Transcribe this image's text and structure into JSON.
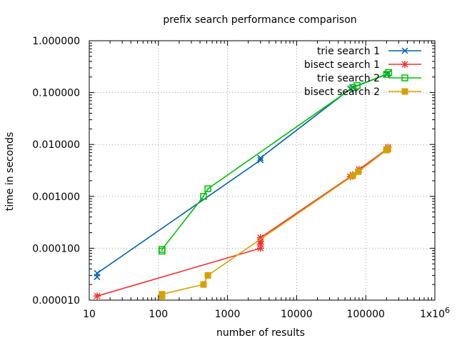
{
  "chart_data": {
    "type": "line",
    "title": "prefix search performance comparison",
    "xlabel": "number of results",
    "ylabel": "time in seconds",
    "x_scale": "log",
    "y_scale": "log",
    "xlim": [
      10,
      1000000
    ],
    "ylim": [
      1e-05,
      1
    ],
    "grid": true,
    "legend_position": "top-right",
    "x_ticks": [
      {
        "value": 10,
        "label": "10"
      },
      {
        "value": 100,
        "label": "100"
      },
      {
        "value": 1000,
        "label": "1000"
      },
      {
        "value": 10000,
        "label": "10000"
      },
      {
        "value": 100000,
        "label": "100000"
      },
      {
        "value": 1000000,
        "label": "1x10",
        "exponent": "6"
      }
    ],
    "y_ticks": [
      {
        "value": 1e-05,
        "label": "0.000010"
      },
      {
        "value": 0.0001,
        "label": "0.000100"
      },
      {
        "value": 0.001,
        "label": "0.001000"
      },
      {
        "value": 0.01,
        "label": "0.010000"
      },
      {
        "value": 0.1,
        "label": "0.100000"
      },
      {
        "value": 1,
        "label": "1.000000"
      }
    ],
    "series": [
      {
        "name": "trie search 1",
        "color": "#0060ad",
        "marker": "x",
        "points": [
          [
            13,
            2.8e-05
          ],
          [
            13,
            3.3e-05
          ],
          [
            3000,
            0.005
          ],
          [
            3000,
            0.0055
          ],
          [
            60000,
            0.118
          ],
          [
            65000,
            0.125
          ],
          [
            200000,
            0.225
          ],
          [
            210000,
            0.235
          ]
        ]
      },
      {
        "name": "bisect search 1",
        "color": "#f03232",
        "marker": "*",
        "points": [
          [
            13,
            1.2e-05
          ],
          [
            3000,
            0.0001
          ],
          [
            3000,
            0.00012
          ],
          [
            3000,
            0.000135
          ],
          [
            3000,
            0.00016
          ],
          [
            60000,
            0.0024
          ],
          [
            65000,
            0.0026
          ],
          [
            80000,
            0.0033
          ],
          [
            200000,
            0.008
          ],
          [
            210000,
            0.0088
          ]
        ]
      },
      {
        "name": "trie search 2",
        "color": "#00c000",
        "marker": "square",
        "points": [
          [
            113,
            8.8e-05
          ],
          [
            113,
            9.5e-05
          ],
          [
            450,
            0.001
          ],
          [
            520,
            0.0014
          ],
          [
            65000,
            0.125
          ],
          [
            75000,
            0.137
          ],
          [
            200000,
            0.225
          ],
          [
            215000,
            0.245
          ]
        ]
      },
      {
        "name": "bisect search 2",
        "color": "#d4a000",
        "marker": "filled-square",
        "points": [
          [
            113,
            1.2e-05
          ],
          [
            113,
            1.3e-05
          ],
          [
            450,
            2e-05
          ],
          [
            520,
            3e-05
          ],
          [
            65000,
            0.0025
          ],
          [
            78000,
            0.003
          ],
          [
            200000,
            0.0078
          ],
          [
            210000,
            0.0082
          ]
        ]
      }
    ]
  }
}
